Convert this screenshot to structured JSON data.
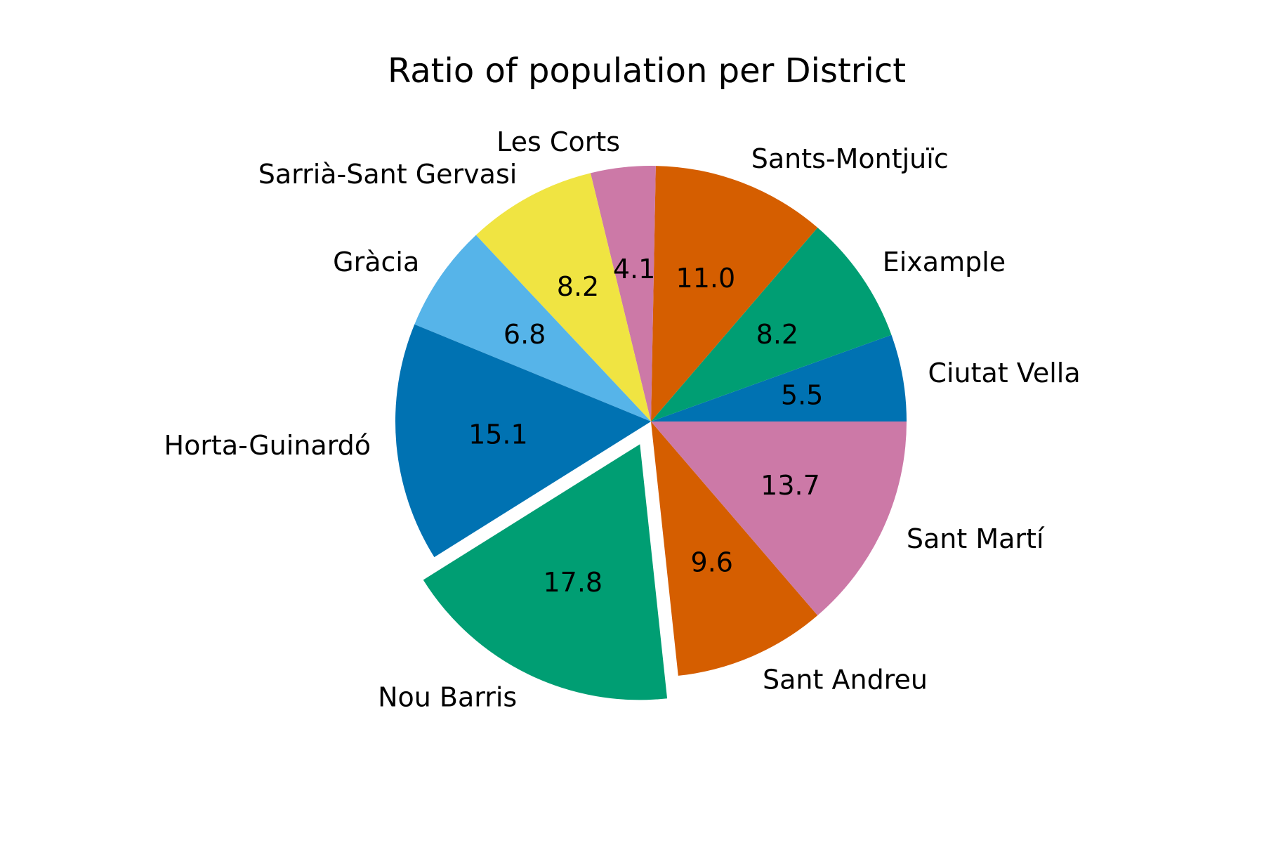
{
  "chart_data": {
    "type": "pie",
    "title": "Ratio of population per District",
    "value_format": "one decimal",
    "start_angle_deg": 0,
    "direction": "counterclockwise",
    "exploded": [
      "Nou Barris"
    ],
    "slices": [
      {
        "label": "Ciutat Vella",
        "value": 5.5,
        "color": "#0072B2"
      },
      {
        "label": "Eixample",
        "value": 8.2,
        "color": "#009E73"
      },
      {
        "label": "Sants-Montjuïc",
        "value": 11.0,
        "color": "#D55E00"
      },
      {
        "label": "Les Corts",
        "value": 4.1,
        "color": "#CC79A7"
      },
      {
        "label": "Sarrià-Sant Gervasi",
        "value": 8.2,
        "color": "#F0E442"
      },
      {
        "label": "Gràcia",
        "value": 6.8,
        "color": "#56B4E9"
      },
      {
        "label": "Horta-Guinardó",
        "value": 15.1,
        "color": "#0072B2"
      },
      {
        "label": "Nou Barris",
        "value": 17.8,
        "color": "#009E73"
      },
      {
        "label": "Sant Andreu",
        "value": 9.6,
        "color": "#D55E00"
      },
      {
        "label": "Sant Martí",
        "value": 13.7,
        "color": "#CC79A7"
      }
    ]
  }
}
